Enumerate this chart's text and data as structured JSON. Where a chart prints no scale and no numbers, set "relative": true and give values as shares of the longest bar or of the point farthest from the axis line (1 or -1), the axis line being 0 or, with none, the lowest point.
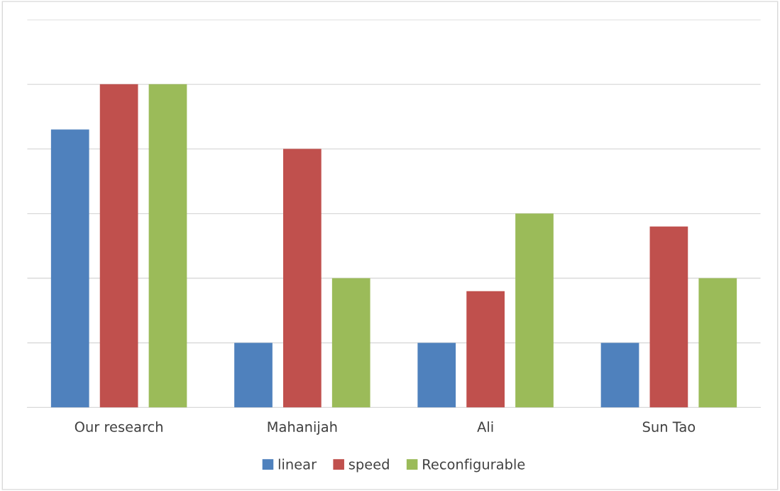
{
  "chart_data": {
    "type": "bar",
    "relative": true,
    "categories": [
      "Our research",
      "Mahanijah",
      "Ali",
      "Sun Tao"
    ],
    "series": [
      {
        "name": "linear",
        "color": "#4f81bd",
        "values": [
          0.86,
          0.2,
          0.2,
          0.2
        ]
      },
      {
        "name": "speed",
        "color": "#c0504d",
        "values": [
          1,
          0.8,
          0.36,
          0.56
        ]
      },
      {
        "name": "Reconfigurable",
        "color": "#9bbb59",
        "values": [
          1,
          0.4,
          0.6,
          0.4
        ]
      }
    ],
    "grid": "y",
    "legend": "bottom"
  }
}
